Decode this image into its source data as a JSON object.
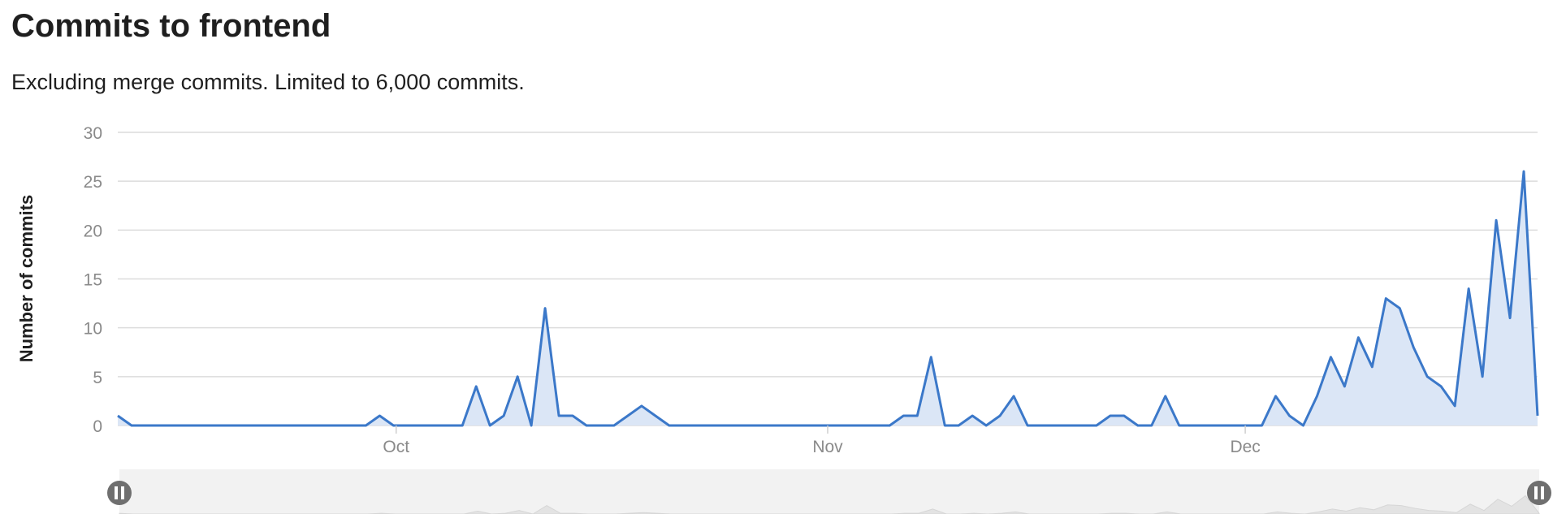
{
  "header": {
    "title": "Commits to frontend",
    "subtitle": "Excluding merge commits. Limited to 6,000 commits."
  },
  "colors": {
    "line": "#3b78c9",
    "area": "#dbe6f6",
    "grid": "#dcdcdc",
    "navigator_bg": "#f2f2f2",
    "handle": "#6f6f6f"
  },
  "icons": {
    "left_handle": "pause-handle-icon",
    "right_handle": "pause-handle-icon"
  },
  "chart_data": {
    "type": "area",
    "title": "",
    "xlabel": "",
    "ylabel": "Number of commits",
    "ylim": [
      0,
      30
    ],
    "yticks": [
      0,
      5,
      10,
      15,
      20,
      25,
      30
    ],
    "grid": true,
    "x_start": "2023-09-11",
    "x_end": "2023-12-22",
    "xticks": [
      {
        "date": "2023-10-01",
        "label": "Oct"
      },
      {
        "date": "2023-11-01",
        "label": "Nov"
      },
      {
        "date": "2023-12-01",
        "label": "Dec"
      }
    ],
    "series": [
      {
        "values": [
          1,
          0,
          0,
          0,
          0,
          0,
          0,
          0,
          0,
          0,
          0,
          0,
          0,
          0,
          0,
          0,
          0,
          0,
          0,
          1,
          0,
          0,
          0,
          0,
          0,
          0,
          4,
          0,
          1,
          5,
          0,
          12,
          1,
          1,
          0,
          0,
          0,
          1,
          2,
          1,
          0,
          0,
          0,
          0,
          0,
          0,
          0,
          0,
          0,
          0,
          0,
          0,
          0,
          0,
          0,
          0,
          0,
          1,
          1,
          7,
          0,
          0,
          1,
          0,
          1,
          3,
          0,
          0,
          0,
          0,
          0,
          0,
          1,
          1,
          0,
          0,
          3,
          0,
          0,
          0,
          0,
          0,
          0,
          0,
          3,
          1,
          0,
          3,
          7,
          4,
          9,
          6,
          13,
          12,
          8,
          5,
          4,
          2,
          14,
          5,
          21,
          11,
          26,
          1
        ]
      }
    ]
  }
}
